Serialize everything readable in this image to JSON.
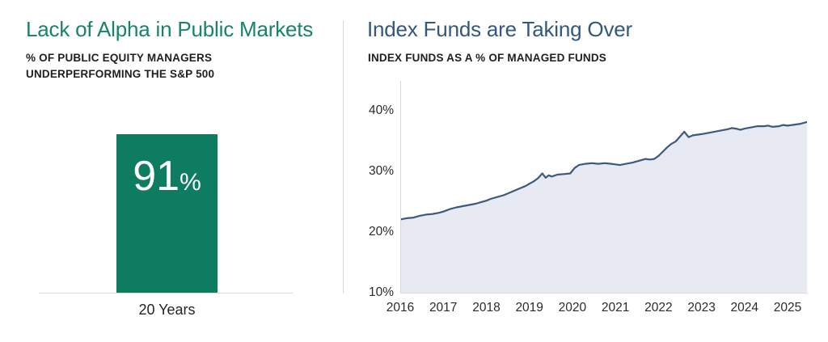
{
  "page": {
    "background": "#ffffff",
    "divider_color": "#d9d9d9"
  },
  "left_panel": {
    "title": "Lack of Alpha in Public Markets",
    "title_color": "#17846A",
    "subtitle_line1": "% OF PUBLIC EQUITY MANAGERS",
    "subtitle_line2": "UNDERPERFORMING THE S&P 500",
    "bar_label_number": "91",
    "bar_label_unit": "%",
    "category_label": "20 Years",
    "bar_color": "#0E7C61"
  },
  "right_panel": {
    "title": "Index Funds are Taking Over",
    "title_color": "#33587D",
    "subtitle": "INDEX FUNDS AS A % OF MANAGED FUNDS",
    "line_color": "#3D5A7E",
    "area_color": "#E7EAF3"
  },
  "chart_data": [
    {
      "type": "bar",
      "title": "Lack of Alpha in Public Markets",
      "subtitle": "% OF PUBLIC EQUITY MANAGERS UNDERPERFORMING THE S&P 500",
      "categories": [
        "20 Years"
      ],
      "values": [
        91
      ],
      "unit": "%",
      "data_label": "91%",
      "ylim": [
        0,
        100
      ],
      "grid": false,
      "bar_color": "#0E7C61",
      "legend": "none"
    },
    {
      "type": "area",
      "title": "Index Funds are Taking Over",
      "subtitle": "INDEX FUNDS AS A % OF MANAGED FUNDS",
      "xlabel": "",
      "ylabel": "",
      "xlim": [
        2016,
        2025.45
      ],
      "ylim": [
        10,
        45
      ],
      "x_tick_years": [
        2016,
        2017,
        2018,
        2019,
        2020,
        2021,
        2022,
        2023,
        2024,
        2025
      ],
      "y_tick_values": [
        10,
        20,
        30,
        40
      ],
      "y_tick_labels": [
        "10%",
        "20%",
        "30%",
        "40%"
      ],
      "grid": false,
      "legend": "none",
      "points": [
        [
          2016.0,
          22.1
        ],
        [
          2016.15,
          22.3
        ],
        [
          2016.3,
          22.4
        ],
        [
          2016.45,
          22.7
        ],
        [
          2016.6,
          22.9
        ],
        [
          2016.75,
          23.0
        ],
        [
          2016.9,
          23.2
        ],
        [
          2017.0,
          23.4
        ],
        [
          2017.15,
          23.8
        ],
        [
          2017.3,
          24.1
        ],
        [
          2017.45,
          24.3
        ],
        [
          2017.6,
          24.5
        ],
        [
          2017.75,
          24.7
        ],
        [
          2017.9,
          25.0
        ],
        [
          2018.0,
          25.2
        ],
        [
          2018.1,
          25.5
        ],
        [
          2018.25,
          25.8
        ],
        [
          2018.4,
          26.1
        ],
        [
          2018.5,
          26.4
        ],
        [
          2018.6,
          26.7
        ],
        [
          2018.7,
          27.0
        ],
        [
          2018.8,
          27.3
        ],
        [
          2018.9,
          27.6
        ],
        [
          2019.0,
          28.0
        ],
        [
          2019.1,
          28.4
        ],
        [
          2019.2,
          28.9
        ],
        [
          2019.3,
          29.7
        ],
        [
          2019.38,
          29.0
        ],
        [
          2019.45,
          29.4
        ],
        [
          2019.52,
          29.2
        ],
        [
          2019.65,
          29.5
        ],
        [
          2019.8,
          29.6
        ],
        [
          2019.95,
          29.7
        ],
        [
          2020.05,
          30.6
        ],
        [
          2020.15,
          31.1
        ],
        [
          2020.3,
          31.3
        ],
        [
          2020.45,
          31.4
        ],
        [
          2020.6,
          31.3
        ],
        [
          2020.75,
          31.4
        ],
        [
          2020.9,
          31.3
        ],
        [
          2021.0,
          31.2
        ],
        [
          2021.1,
          31.1
        ],
        [
          2021.25,
          31.3
        ],
        [
          2021.4,
          31.5
        ],
        [
          2021.55,
          31.8
        ],
        [
          2021.7,
          32.1
        ],
        [
          2021.8,
          32.0
        ],
        [
          2021.9,
          32.1
        ],
        [
          2022.0,
          32.6
        ],
        [
          2022.1,
          33.3
        ],
        [
          2022.2,
          34.0
        ],
        [
          2022.3,
          34.6
        ],
        [
          2022.4,
          35.0
        ],
        [
          2022.5,
          35.8
        ],
        [
          2022.6,
          36.6
        ],
        [
          2022.7,
          35.7
        ],
        [
          2022.8,
          36.0
        ],
        [
          2022.9,
          36.1
        ],
        [
          2023.0,
          36.2
        ],
        [
          2023.15,
          36.4
        ],
        [
          2023.3,
          36.6
        ],
        [
          2023.45,
          36.8
        ],
        [
          2023.6,
          37.0
        ],
        [
          2023.7,
          37.2
        ],
        [
          2023.8,
          37.1
        ],
        [
          2023.9,
          36.9
        ],
        [
          2024.0,
          37.1
        ],
        [
          2024.15,
          37.3
        ],
        [
          2024.3,
          37.5
        ],
        [
          2024.45,
          37.5
        ],
        [
          2024.55,
          37.6
        ],
        [
          2024.65,
          37.4
        ],
        [
          2024.8,
          37.5
        ],
        [
          2024.9,
          37.7
        ],
        [
          2025.0,
          37.6
        ],
        [
          2025.1,
          37.7
        ],
        [
          2025.2,
          37.8
        ],
        [
          2025.3,
          37.9
        ],
        [
          2025.45,
          38.2
        ]
      ]
    }
  ]
}
